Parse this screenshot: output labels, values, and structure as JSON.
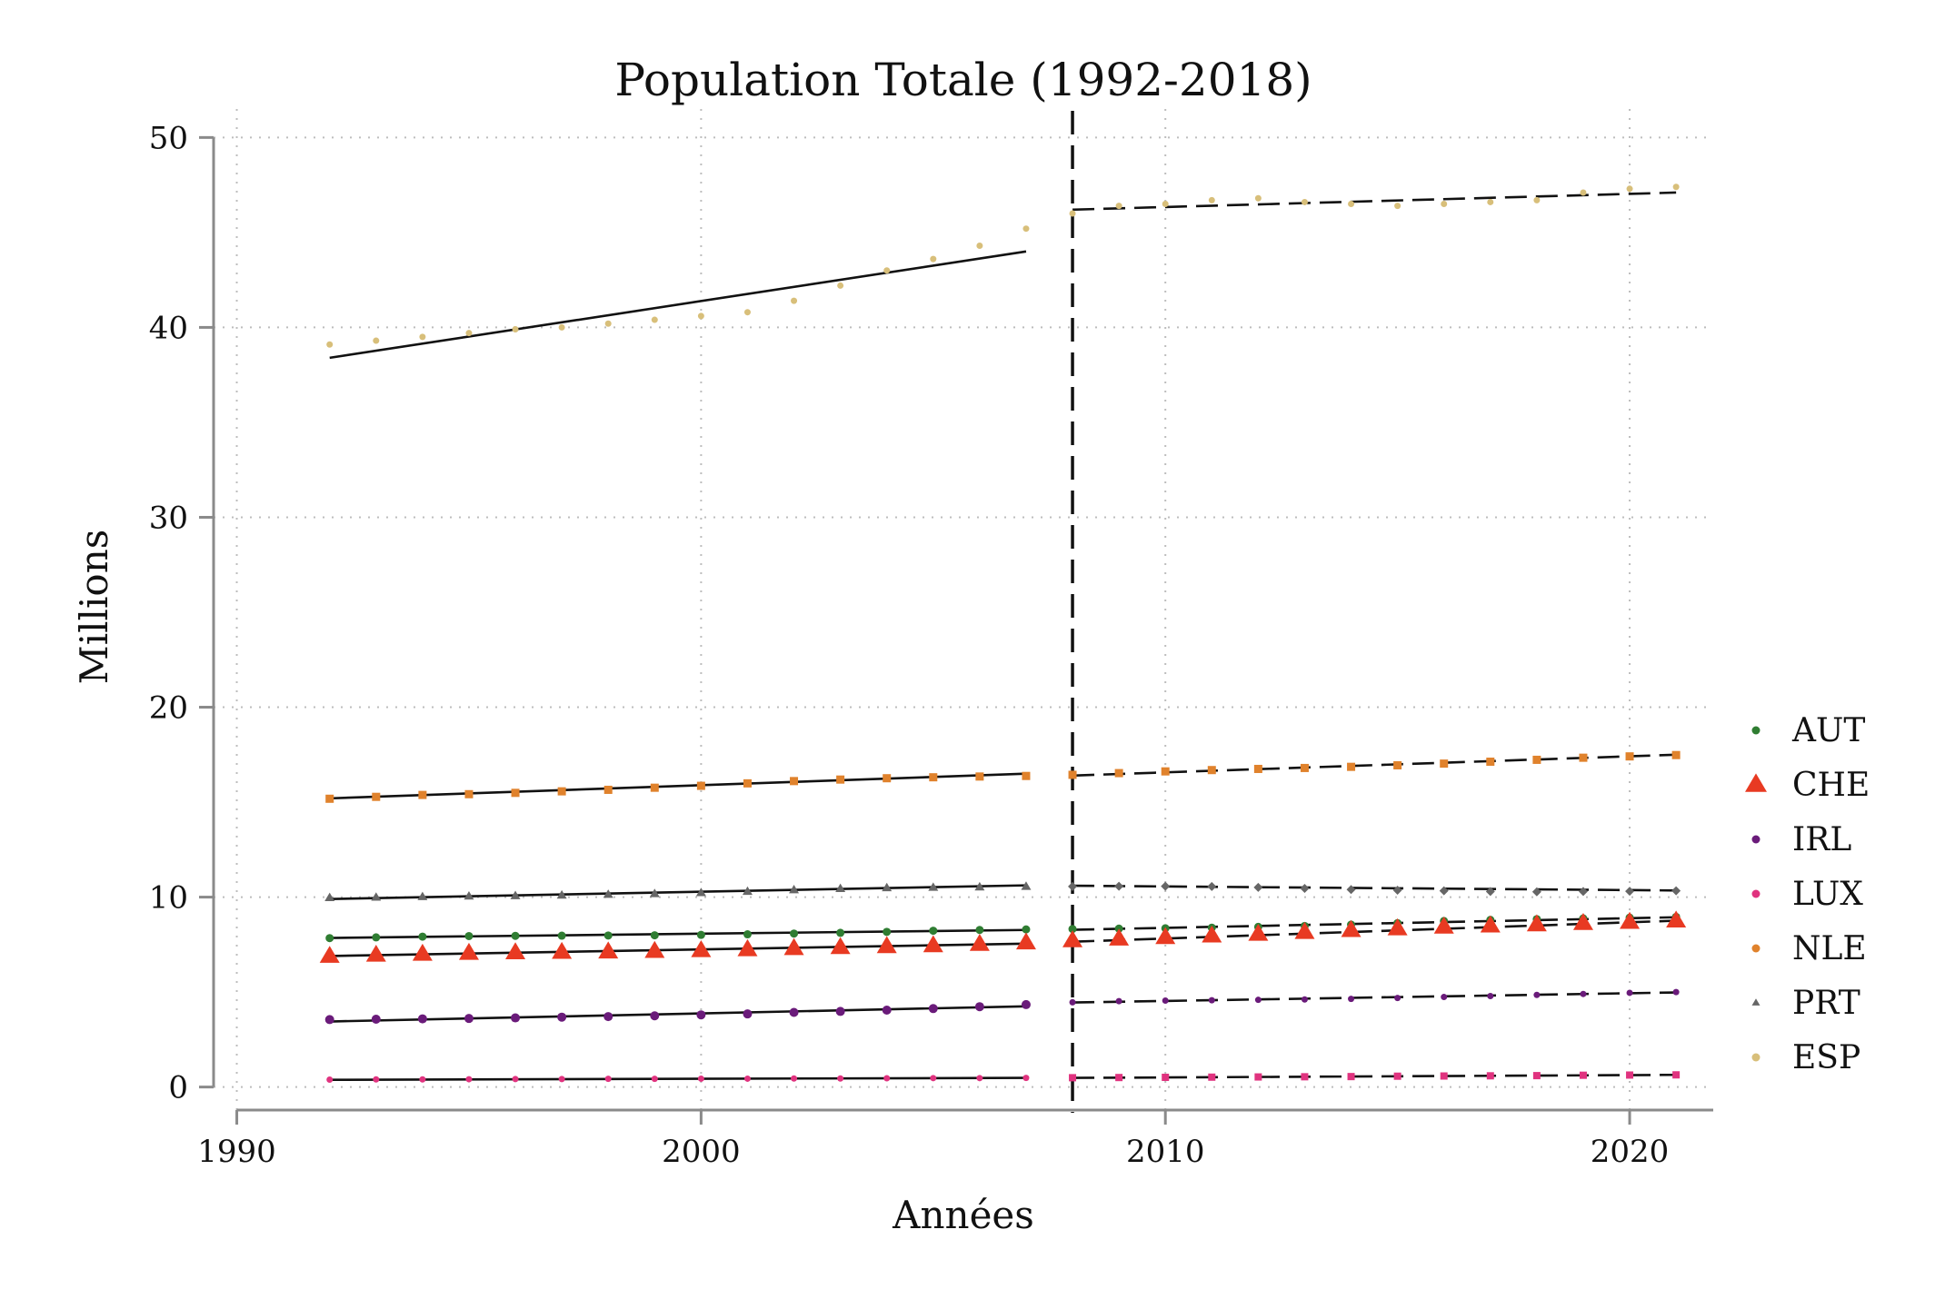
{
  "chart_data": {
    "type": "scatter",
    "title": "Population Totale (1992-2018)",
    "xlabel": "Années",
    "ylabel": "Millions",
    "xlim": [
      1989.5,
      2021.8
    ],
    "ylim": [
      -1.5,
      51.5
    ],
    "xticks": [
      1990,
      2000,
      2010,
      2020
    ],
    "yticks": [
      0,
      10,
      20,
      30,
      40,
      50
    ],
    "grid": true,
    "legend_position": "right",
    "cutoff_year": 2008,
    "series": [
      {
        "name": "AUT",
        "color": "#2f7d32",
        "marker": "circle",
        "size": 4.5,
        "x": [
          1992,
          1993,
          1994,
          1995,
          1996,
          1997,
          1998,
          1999,
          2000,
          2001,
          2002,
          2003,
          2004,
          2005,
          2006,
          2007,
          2008,
          2009,
          2010,
          2011,
          2012,
          2013,
          2014,
          2015,
          2016,
          2017,
          2018,
          2019,
          2020,
          2021
        ],
        "values": [
          7.84,
          7.88,
          7.92,
          7.95,
          7.96,
          7.97,
          7.98,
          7.99,
          8.01,
          8.04,
          8.08,
          8.12,
          8.17,
          8.23,
          8.27,
          8.3,
          8.32,
          8.34,
          8.36,
          8.39,
          8.43,
          8.48,
          8.55,
          8.63,
          8.74,
          8.8,
          8.84,
          8.88,
          8.92,
          8.96
        ],
        "fit_before": [
          7.85,
          8.27
        ],
        "fit_after": [
          8.28,
          8.94
        ]
      },
      {
        "name": "CHE",
        "color": "#e83a22",
        "marker": "triangle",
        "size": 11,
        "x": [
          1992,
          1993,
          1994,
          1995,
          1996,
          1997,
          1998,
          1999,
          2000,
          2001,
          2002,
          2003,
          2004,
          2005,
          2006,
          2007,
          2008,
          2009,
          2010,
          2011,
          2012,
          2013,
          2014,
          2015,
          2016,
          2017,
          2018,
          2019,
          2020,
          2021
        ],
        "values": [
          6.88,
          6.94,
          6.99,
          7.04,
          7.07,
          7.09,
          7.11,
          7.14,
          7.18,
          7.23,
          7.29,
          7.34,
          7.39,
          7.44,
          7.51,
          7.59,
          7.7,
          7.79,
          7.87,
          7.95,
          8.04,
          8.14,
          8.24,
          8.33,
          8.42,
          8.48,
          8.54,
          8.61,
          8.67,
          8.74
        ],
        "fit_before": [
          6.9,
          7.55
        ],
        "fit_after": [
          7.65,
          8.76
        ]
      },
      {
        "name": "IRL",
        "color": "#6a1b7a",
        "marker": "circle",
        "size": 5,
        "x": [
          1992,
          1993,
          1994,
          1995,
          1996,
          1997,
          1998,
          1999,
          2000,
          2001,
          2002,
          2003,
          2004,
          2005,
          2006,
          2007,
          2008,
          2009,
          2010,
          2011,
          2012,
          2013,
          2014,
          2015,
          2016,
          2017,
          2018,
          2019,
          2020,
          2021
        ],
        "values": [
          3.55,
          3.57,
          3.59,
          3.61,
          3.64,
          3.68,
          3.71,
          3.75,
          3.8,
          3.85,
          3.93,
          3.98,
          4.05,
          4.13,
          4.23,
          4.34,
          4.46,
          4.52,
          4.55,
          4.57,
          4.59,
          4.61,
          4.64,
          4.69,
          4.74,
          4.79,
          4.85,
          4.9,
          4.96,
          5.0
        ],
        "fit_before": [
          3.45,
          4.25
        ],
        "fit_after": [
          4.45,
          4.98
        ]
      },
      {
        "name": "LUX",
        "color": "#e0337f",
        "marker": "square",
        "size": 4,
        "x": [
          1992,
          1993,
          1994,
          1995,
          1996,
          1997,
          1998,
          1999,
          2000,
          2001,
          2002,
          2003,
          2004,
          2005,
          2006,
          2007,
          2008,
          2009,
          2010,
          2011,
          2012,
          2013,
          2014,
          2015,
          2016,
          2017,
          2018,
          2019,
          2020,
          2021
        ],
        "values": [
          0.39,
          0.4,
          0.4,
          0.41,
          0.42,
          0.42,
          0.43,
          0.43,
          0.44,
          0.44,
          0.45,
          0.45,
          0.46,
          0.47,
          0.47,
          0.48,
          0.49,
          0.5,
          0.51,
          0.52,
          0.53,
          0.54,
          0.55,
          0.57,
          0.58,
          0.59,
          0.6,
          0.62,
          0.63,
          0.64
        ],
        "fit_before": [
          0.38,
          0.48
        ],
        "fit_after": [
          0.48,
          0.64
        ]
      },
      {
        "name": "NLE",
        "color": "#e0822c",
        "marker": "square",
        "size": 4.5,
        "x": [
          1992,
          1993,
          1994,
          1995,
          1996,
          1997,
          1998,
          1999,
          2000,
          2001,
          2002,
          2003,
          2004,
          2005,
          2006,
          2007,
          2008,
          2009,
          2010,
          2011,
          2012,
          2013,
          2014,
          2015,
          2016,
          2017,
          2018,
          2019,
          2020,
          2021
        ],
        "values": [
          15.18,
          15.28,
          15.38,
          15.42,
          15.49,
          15.57,
          15.65,
          15.76,
          15.86,
          15.99,
          16.11,
          16.19,
          16.26,
          16.31,
          16.35,
          16.38,
          16.44,
          16.53,
          16.62,
          16.69,
          16.75,
          16.8,
          16.86,
          16.94,
          17.03,
          17.13,
          17.23,
          17.34,
          17.41,
          17.48
        ],
        "fit_before": [
          15.2,
          16.5
        ],
        "fit_after": [
          16.4,
          17.5
        ]
      },
      {
        "name": "PRT",
        "color": "#666666",
        "marker": "triangle",
        "size": 5.5,
        "x": [
          1992,
          1993,
          1994,
          1995,
          1996,
          1997,
          1998,
          1999,
          2000,
          2001,
          2002,
          2003,
          2004,
          2005,
          2006,
          2007,
          2008,
          2009,
          2010,
          2011,
          2012,
          2013,
          2014,
          2015,
          2016,
          2017,
          2018,
          2019,
          2020,
          2021
        ],
        "values": [
          9.96,
          9.98,
          10.01,
          10.04,
          10.06,
          10.09,
          10.13,
          10.17,
          10.22,
          10.29,
          10.37,
          10.44,
          10.48,
          10.5,
          10.52,
          10.55,
          10.56,
          10.57,
          10.57,
          10.56,
          10.51,
          10.46,
          10.4,
          10.36,
          10.33,
          10.3,
          10.28,
          10.3,
          10.31,
          10.33
        ],
        "fit_before": [
          9.9,
          10.62
        ],
        "fit_after": [
          10.6,
          10.35
        ]
      },
      {
        "name": "ESP",
        "color": "#d8bf7a",
        "marker": "circle",
        "size": 3.5,
        "x": [
          1992,
          1993,
          1994,
          1995,
          1996,
          1997,
          1998,
          1999,
          2000,
          2001,
          2002,
          2003,
          2004,
          2005,
          2006,
          2007,
          2008,
          2009,
          2010,
          2011,
          2012,
          2013,
          2014,
          2015,
          2016,
          2017,
          2018,
          2019,
          2020,
          2021
        ],
        "values": [
          39.1,
          39.3,
          39.5,
          39.7,
          39.9,
          40.0,
          40.2,
          40.4,
          40.6,
          40.8,
          41.4,
          42.2,
          43.0,
          43.6,
          44.3,
          45.2,
          46.0,
          46.4,
          46.5,
          46.7,
          46.8,
          46.6,
          46.5,
          46.4,
          46.5,
          46.6,
          46.7,
          47.1,
          47.3,
          47.4
        ],
        "fit_before": [
          38.4,
          44.0
        ],
        "fit_after": [
          46.2,
          47.1
        ]
      }
    ]
  }
}
